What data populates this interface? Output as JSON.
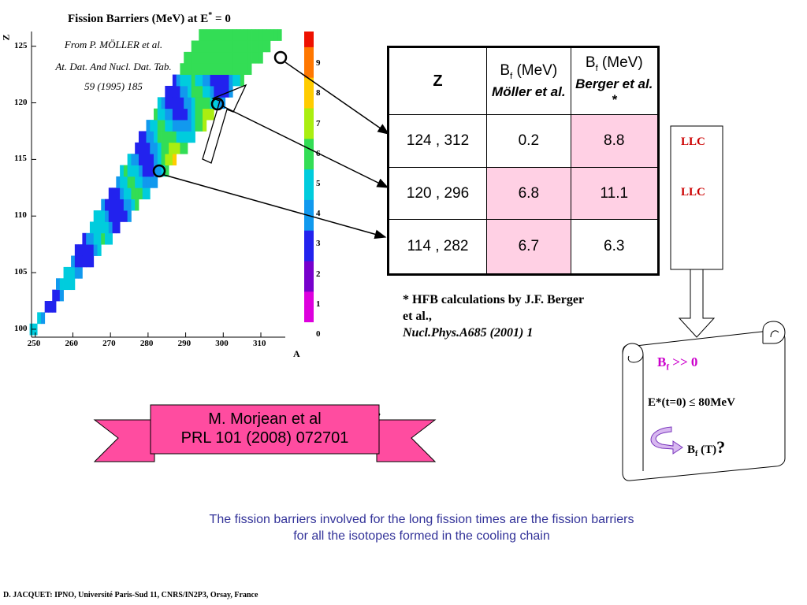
{
  "map": {
    "title_prefix": "Fission Barriers (MeV) at E",
    "title_sup": "*",
    "title_suffix": " = 0",
    "reference": {
      "line1": "From P. MÖLLER et al.",
      "line2": "At. Dat. And Nucl. Dat. Tab.",
      "line3": "59 (1995) 185"
    },
    "y_axis_label": "Z",
    "x_axis_label": "A",
    "x_ticks": [
      "250",
      "260",
      "270",
      "280",
      "290",
      "300",
      "310"
    ],
    "y_ticks": [
      "100",
      "105",
      "110",
      "115",
      "120",
      "125"
    ],
    "colorbar_ticks": [
      "0",
      "1",
      "2",
      "3",
      "4",
      "5",
      "6",
      "7",
      "8",
      "9"
    ]
  },
  "table": {
    "col_z": "Z",
    "col_moller": {
      "main": "B",
      "sub": "f",
      "unit": " (MeV)",
      "source": "Möller et al."
    },
    "col_berger": {
      "main": "B",
      "sub": "f",
      "unit": " (MeV)",
      "source": "Berger et al. *"
    },
    "rows": [
      {
        "z_a": "124 , 312",
        "moller": "0.2",
        "berger": "8.8"
      },
      {
        "z_a": "120 , 296",
        "moller": "6.8",
        "berger": "11.1"
      },
      {
        "z_a": "114 , 282",
        "moller": "6.7",
        "berger": "6.3"
      }
    ]
  },
  "hfb_note": {
    "line1": "* HFB calculations by J.F. Berger",
    "line2": "et al.,",
    "line3": "Nucl.Phys.A685 (2001) 1"
  },
  "llc": {
    "label1": "LLC",
    "label2": "LLC"
  },
  "scroll": {
    "bf_main": "B",
    "bf_sub": "f",
    "bf_rest": " >> 0",
    "energy": "E*(t=0) ≤ 80MeV",
    "bft_main": "B",
    "bft_sub": "f",
    "bft_rest": " (T)",
    "question": "?"
  },
  "ribbon": {
    "line1": "M. Morjean et al",
    "line2": "PRL 101 (2008) 072701"
  },
  "caption": {
    "line1": "The fission barriers involved for the long fission times are the fission barriers",
    "line2": "for all the isotopes formed in the cooling chain"
  },
  "footer": "D. JACQUET:   IPNO, Université Paris-Sud 11, CNRS/IN2P3, Orsay, France",
  "colors": {
    "highlight": "#ffd0e4",
    "ribbon": "#ff4ca0",
    "llc": "#cc0000",
    "caption": "#333399",
    "scroll_bf": "#cc00cc"
  }
}
